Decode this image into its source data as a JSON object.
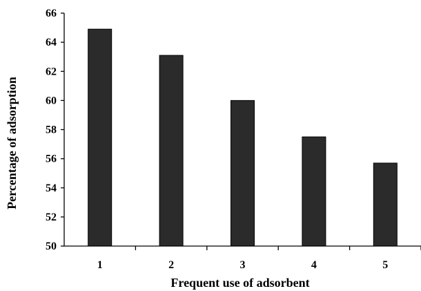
{
  "chart_data": {
    "type": "bar",
    "categories": [
      "1",
      "2",
      "3",
      "4",
      "5"
    ],
    "values": [
      64.9,
      63.1,
      60.0,
      57.5,
      55.7
    ],
    "xlabel": "Frequent use of adsorbent",
    "ylabel": "Percentage of adsorption",
    "ylim": [
      50,
      66
    ],
    "yticks": [
      50,
      52,
      54,
      56,
      58,
      60,
      62,
      64,
      66
    ],
    "grid": false,
    "bar_color": "#2b2b2b",
    "axis_color": "#000000"
  }
}
